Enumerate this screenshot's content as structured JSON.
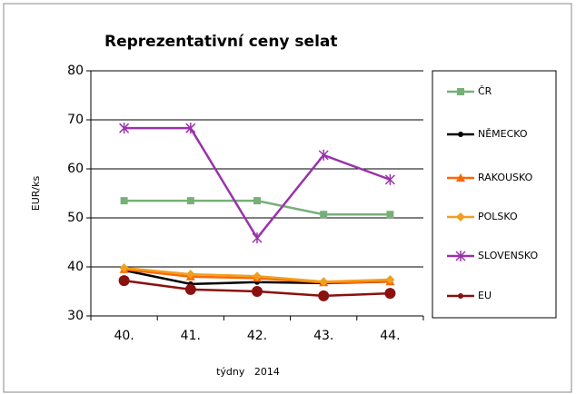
{
  "chart_data": {
    "type": "line",
    "title": "Reprezentativní ceny selat",
    "xlabel": "týdny   2014",
    "ylabel": "EUR/ks",
    "categories": [
      "40.",
      "41.",
      "42.",
      "43.",
      "44."
    ],
    "ylim": [
      30,
      80
    ],
    "yticks": [
      30,
      40,
      50,
      60,
      70,
      80
    ],
    "grid": true,
    "legend": "right",
    "series": [
      {
        "name": "ČR",
        "color": "#77b077",
        "marker": "square",
        "values": [
          53.5,
          53.5,
          53.5,
          50.7,
          50.7
        ]
      },
      {
        "name": "NĚMECKO",
        "color": "#000000",
        "marker": "circle",
        "values": [
          39.3,
          36.5,
          36.9,
          36.7,
          37.0
        ]
      },
      {
        "name": "RAKOUSKO",
        "color": "#ff6600",
        "marker": "triangle",
        "values": [
          39.5,
          38.0,
          37.7,
          36.8,
          37.0
        ]
      },
      {
        "name": "POLSKO",
        "color": "#f0a020",
        "marker": "diamond",
        "values": [
          39.8,
          38.5,
          38.1,
          37.0,
          37.4
        ]
      },
      {
        "name": "SLOVENSKO",
        "color": "#9933aa",
        "marker": "star",
        "values": [
          68.3,
          68.3,
          45.9,
          62.8,
          57.8
        ]
      },
      {
        "name": "EU",
        "color": "#8b1010",
        "marker": "bigcircle",
        "values": [
          37.2,
          35.4,
          35.0,
          34.1,
          34.6
        ]
      }
    ]
  }
}
